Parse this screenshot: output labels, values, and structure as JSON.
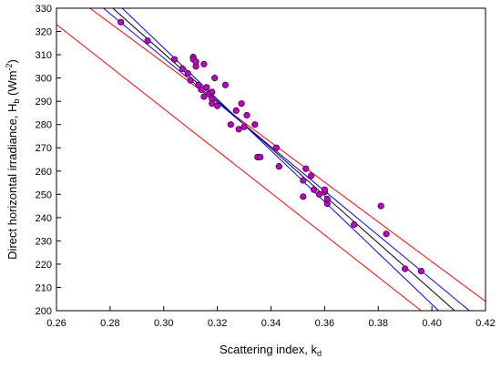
{
  "chart_data": {
    "type": "scatter",
    "xlabel": [
      "Scattering index, k",
      "d"
    ],
    "ylabel": [
      "Direct horizontal irradiance, H",
      "b",
      " (Wm",
      "-2",
      ")"
    ],
    "xlim": [
      0.26,
      0.42
    ],
    "ylim": [
      200,
      330
    ],
    "xticks": [
      0.26,
      0.28,
      0.3,
      0.32,
      0.34,
      0.36,
      0.38,
      0.4,
      0.42
    ],
    "yticks": [
      200,
      210,
      220,
      230,
      240,
      250,
      260,
      270,
      280,
      290,
      300,
      310,
      320,
      330
    ],
    "points": {
      "color": "#c000c0",
      "x": [
        0.284,
        0.294,
        0.304,
        0.307,
        0.309,
        0.31,
        0.311,
        0.311,
        0.312,
        0.312,
        0.313,
        0.314,
        0.315,
        0.315,
        0.316,
        0.317,
        0.318,
        0.318,
        0.319,
        0.318,
        0.32,
        0.323,
        0.325,
        0.327,
        0.328,
        0.329,
        0.33,
        0.331,
        0.334,
        0.335,
        0.336,
        0.342,
        0.343,
        0.352,
        0.352,
        0.353,
        0.355,
        0.356,
        0.358,
        0.36,
        0.36,
        0.361,
        0.361,
        0.371,
        0.381,
        0.383,
        0.39,
        0.396
      ],
      "values": [
        324,
        316,
        308,
        304,
        302,
        299,
        309,
        308,
        305,
        307,
        297,
        295,
        306,
        292,
        296,
        293,
        291,
        289,
        300,
        294,
        288,
        297,
        280,
        286,
        278,
        289,
        279,
        284,
        280,
        266,
        266,
        270,
        262,
        256,
        249,
        261,
        258,
        252,
        250,
        251,
        252,
        246,
        248,
        237,
        245,
        233,
        218,
        217
      ]
    },
    "lines": [
      {
        "color": "#ff0000",
        "x": [
          0.2725,
          0.42
        ],
        "values": [
          330,
          204
        ]
      },
      {
        "color": "#0000ff",
        "x": [
          0.2775,
          0.414
        ],
        "values": [
          330,
          200
        ]
      },
      {
        "color": "#000000",
        "x": [
          0.281,
          0.4085
        ],
        "values": [
          330,
          200
        ]
      },
      {
        "color": "#0000ff",
        "x": [
          0.2845,
          0.4025
        ],
        "values": [
          330,
          200
        ]
      },
      {
        "color": "#ff0000",
        "x": [
          0.26,
          0.396
        ],
        "values": [
          323,
          200
        ]
      }
    ]
  }
}
